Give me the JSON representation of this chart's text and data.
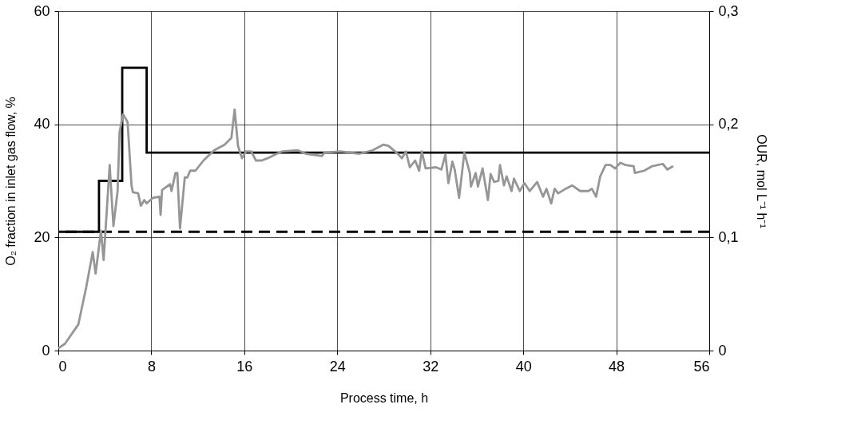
{
  "chart_data": {
    "type": "line",
    "xlabel": "Process time,  h",
    "ylabel": "O₂ fraction in inlet gas flow,  %",
    "y2label": "OUR,  mol L⁻¹ h⁻¹",
    "xlim": [
      0,
      56
    ],
    "xticks": [
      0,
      8,
      16,
      24,
      32,
      40,
      48,
      56
    ],
    "ylim": [
      0,
      60
    ],
    "yticks": [
      0,
      20,
      40,
      60
    ],
    "y2lim": [
      0,
      0.3
    ],
    "y2ticks": [
      0,
      {
        "value": 0.1,
        "label": "0,1"
      },
      {
        "value": 0.2,
        "label": "0,2"
      },
      {
        "value": 0.3,
        "label": "0,3"
      }
    ],
    "grid": true,
    "ref_lines": [
      {
        "axis": "y",
        "value": 21,
        "color": "#000000",
        "line_style": "dashed"
      }
    ],
    "series": [
      {
        "type": "step",
        "color": "#000000",
        "x": [
          0,
          3.5,
          5.5,
          7.6,
          56
        ],
        "values": [
          21,
          30,
          50,
          35,
          35
        ]
      },
      {
        "axis": "y2",
        "color": "#969696",
        "x": [
          0,
          0.57,
          1.72,
          2.4,
          2.96,
          3.21,
          3.67,
          3.9,
          4.42,
          4.74,
          5.1,
          5.27,
          5.57,
          5.96,
          6.3,
          6.41,
          6.87,
          7.1,
          7.4,
          7.6,
          8.13,
          8.7,
          8.8,
          8.93,
          9.62,
          9.74,
          10.08,
          10.24,
          10.47,
          10.88,
          11.1,
          11.34,
          11.8,
          12.49,
          13.4,
          14.3,
          14.89,
          15.17,
          15.46,
          15.8,
          16.15,
          16.6,
          17.0,
          17.5,
          18.0,
          18.8,
          19.24,
          20.6,
          21.3,
          22.68,
          22.9,
          24.28,
          25.9,
          27.03,
          27.95,
          28.4,
          29.1,
          29.55,
          29.9,
          30.24,
          30.7,
          31.04,
          31.27,
          31.6,
          32.5,
          32.95,
          33.3,
          33.56,
          33.9,
          34.1,
          34.48,
          34.93,
          35.4,
          35.5,
          35.9,
          36.1,
          36.5,
          36.96,
          37.19,
          37.5,
          37.86,
          38.0,
          38.34,
          38.57,
          38.99,
          39.2,
          39.7,
          40.1,
          40.55,
          41.2,
          41.7,
          42.0,
          42.4,
          42.7,
          43.0,
          43.64,
          44.2,
          44.9,
          45.6,
          45.9,
          46.27,
          46.62,
          47.08,
          47.5,
          47.9,
          48.35,
          48.8,
          49.5,
          49.6,
          50.4,
          51.1,
          52.0,
          52.4,
          52.9
        ],
        "values": [
          0.002,
          0.006,
          0.023,
          0.056,
          0.087,
          0.068,
          0.106,
          0.08,
          0.164,
          0.11,
          0.141,
          0.193,
          0.209,
          0.202,
          0.146,
          0.14,
          0.139,
          0.128,
          0.133,
          0.13,
          0.135,
          0.136,
          0.12,
          0.142,
          0.147,
          0.141,
          0.157,
          0.157,
          0.108,
          0.153,
          0.153,
          0.159,
          0.159,
          0.168,
          0.177,
          0.182,
          0.188,
          0.213,
          0.181,
          0.17,
          0.176,
          0.176,
          0.168,
          0.168,
          0.17,
          0.174,
          0.176,
          0.177,
          0.174,
          0.172,
          0.175,
          0.176,
          0.174,
          0.177,
          0.182,
          0.181,
          0.175,
          0.17,
          0.176,
          0.162,
          0.168,
          0.159,
          0.176,
          0.161,
          0.162,
          0.16,
          0.173,
          0.148,
          0.167,
          0.16,
          0.135,
          0.175,
          0.157,
          0.145,
          0.157,
          0.145,
          0.161,
          0.133,
          0.156,
          0.149,
          0.15,
          0.164,
          0.146,
          0.154,
          0.141,
          0.152,
          0.141,
          0.148,
          0.141,
          0.149,
          0.136,
          0.143,
          0.13,
          0.143,
          0.139,
          0.143,
          0.146,
          0.141,
          0.141,
          0.143,
          0.136,
          0.154,
          0.164,
          0.164,
          0.161,
          0.166,
          0.164,
          0.163,
          0.157,
          0.159,
          0.163,
          0.165,
          0.16,
          0.163
        ]
      }
    ]
  }
}
